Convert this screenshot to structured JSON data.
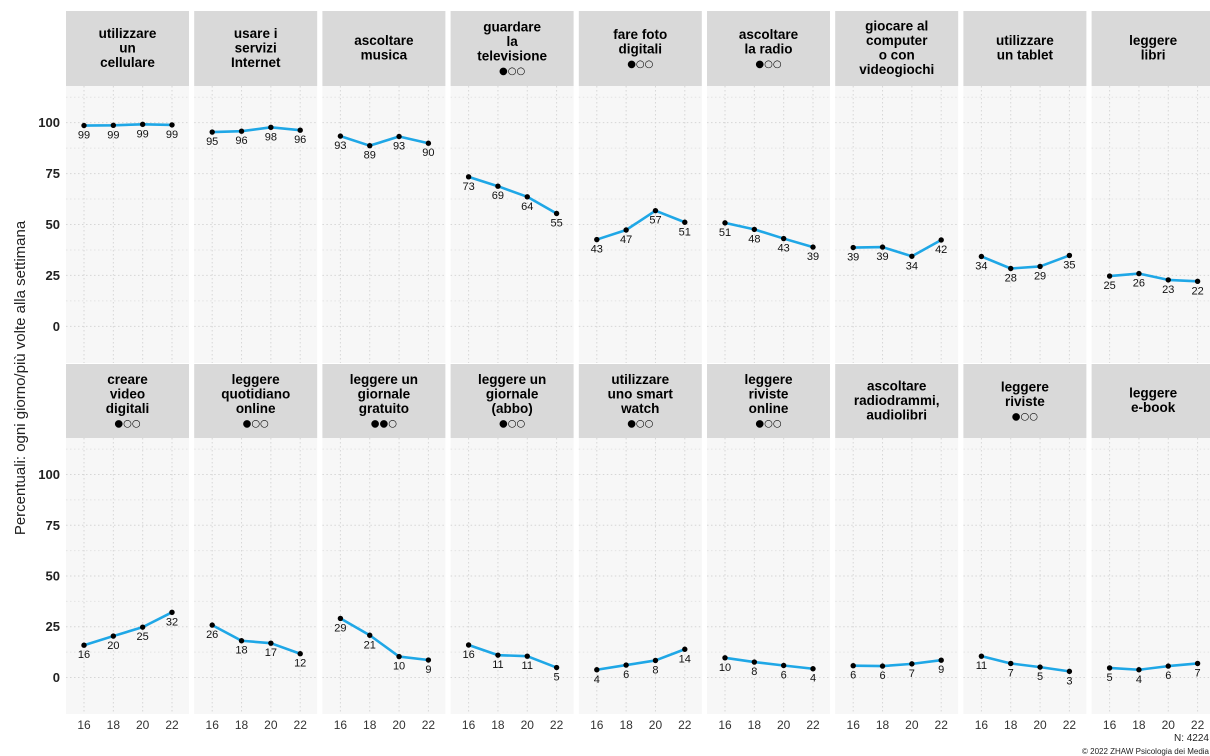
{
  "chart_data": {
    "type": "line",
    "ylabel": "Percentuali: ogni giorno/più volte alla settimana",
    "x": [
      "16",
      "18",
      "20",
      "22"
    ],
    "y_ticks": [
      0,
      25,
      50,
      75,
      100
    ],
    "ylim": [
      -18,
      118
    ],
    "line_color": "#1fa7e6",
    "point_color": "#000000",
    "footnote_n": "N: 4224",
    "copyright": "© 2022 ZHAW Psicologia dei Media",
    "panels": [
      {
        "title": [
          "utilizzare",
          "un",
          "cellulare"
        ],
        "marker": "",
        "values": [
          99,
          99,
          99,
          99
        ],
        "plot_values": [
          98.6,
          98.7,
          99.2,
          98.9
        ]
      },
      {
        "title": [
          "usare i",
          "servizi",
          "Internet"
        ],
        "marker": "",
        "values": [
          95,
          96,
          98,
          96
        ],
        "plot_values": [
          95.4,
          95.8,
          97.7,
          96.3
        ]
      },
      {
        "title": [
          "ascoltare",
          "musica"
        ],
        "marker": "",
        "values": [
          93,
          89,
          93,
          90
        ],
        "plot_values": [
          93.4,
          88.7,
          93.2,
          89.9
        ]
      },
      {
        "title": [
          "guardare",
          "la",
          "televisione"
        ],
        "marker": "●○○",
        "values": [
          73,
          69,
          64,
          55
        ],
        "plot_values": [
          73.4,
          68.8,
          63.6,
          55.4
        ]
      },
      {
        "title": [
          "fare foto",
          "digitali"
        ],
        "marker": "●○○",
        "values": [
          43,
          47,
          57,
          51
        ],
        "plot_values": [
          42.6,
          47.3,
          56.8,
          51.1
        ]
      },
      {
        "title": [
          "ascoltare",
          "la radio"
        ],
        "marker": "●○○",
        "values": [
          51,
          48,
          43,
          39
        ],
        "plot_values": [
          50.8,
          47.6,
          43.1,
          38.9
        ]
      },
      {
        "title": [
          "giocare al",
          "computer",
          "o con",
          "videogiochi"
        ],
        "marker": "",
        "values": [
          39,
          39,
          34,
          42
        ],
        "plot_values": [
          38.7,
          38.9,
          34.4,
          42.4
        ]
      },
      {
        "title": [
          "utilizzare",
          "un tablet"
        ],
        "marker": "",
        "values": [
          34,
          28,
          29,
          35
        ],
        "plot_values": [
          34.3,
          28.4,
          29.4,
          34.8
        ]
      },
      {
        "title": [
          "leggere",
          "libri"
        ],
        "marker": "",
        "values": [
          25,
          26,
          23,
          22
        ],
        "plot_values": [
          24.7,
          25.9,
          22.8,
          22.1
        ]
      },
      {
        "title": [
          "creare",
          "video",
          "digitali"
        ],
        "marker": "●○○",
        "values": [
          16,
          20,
          25,
          32
        ],
        "plot_values": [
          15.9,
          20.4,
          24.8,
          32.1
        ]
      },
      {
        "title": [
          "leggere",
          "quotidiano",
          "online"
        ],
        "marker": "●○○",
        "values": [
          26,
          18,
          17,
          12
        ],
        "plot_values": [
          25.8,
          18.1,
          16.9,
          11.7
        ]
      },
      {
        "title": [
          "leggere un",
          "giornale",
          "gratuito"
        ],
        "marker": "●●○",
        "values": [
          29,
          21,
          10,
          9
        ],
        "plot_values": [
          29.1,
          20.8,
          10.3,
          8.6
        ]
      },
      {
        "title": [
          "leggere un",
          "giornale",
          "(abbo)"
        ],
        "marker": "●○○",
        "values": [
          16,
          11,
          11,
          5
        ],
        "plot_values": [
          16.0,
          11.0,
          10.5,
          4.9
        ]
      },
      {
        "title": [
          "utilizzare",
          "uno smart",
          "watch"
        ],
        "marker": "●○○",
        "values": [
          4,
          6,
          8,
          14
        ],
        "plot_values": [
          3.8,
          6.1,
          8.4,
          13.9
        ]
      },
      {
        "title": [
          "leggere",
          "riviste",
          "online"
        ],
        "marker": "●○○",
        "values": [
          10,
          8,
          6,
          4
        ],
        "plot_values": [
          9.7,
          7.6,
          5.9,
          4.3
        ]
      },
      {
        "title": [
          "ascoltare",
          "radiodrammi,",
          "audiolibri"
        ],
        "marker": "",
        "values": [
          6,
          6,
          7,
          9
        ],
        "plot_values": [
          5.8,
          5.6,
          6.7,
          8.5
        ]
      },
      {
        "title": [
          "leggere",
          "riviste"
        ],
        "marker": "●○○",
        "values": [
          11,
          7,
          5,
          3
        ],
        "plot_values": [
          10.5,
          6.9,
          5.1,
          3.0
        ]
      },
      {
        "title": [
          "leggere",
          "e-book"
        ],
        "marker": "",
        "values": [
          5,
          4,
          6,
          7
        ],
        "plot_values": [
          4.7,
          3.8,
          5.6,
          6.9
        ]
      }
    ]
  }
}
